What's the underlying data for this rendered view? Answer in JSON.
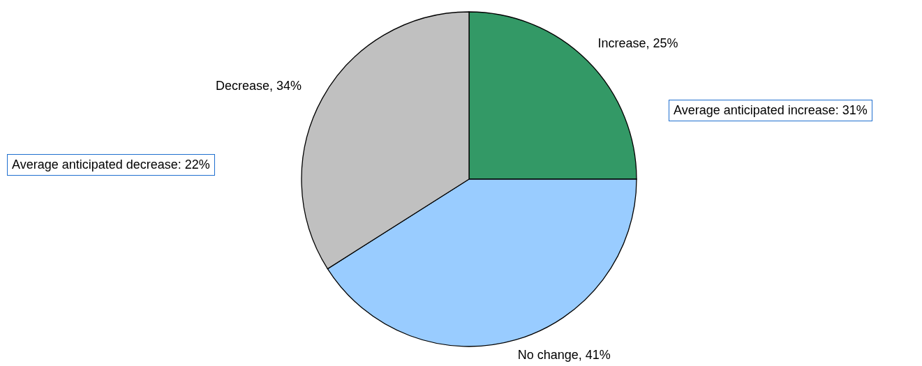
{
  "chart_data": {
    "type": "pie",
    "categories": [
      "Increase",
      "No change",
      "Decrease"
    ],
    "values": [
      25,
      41,
      34
    ],
    "colors": [
      "#339966",
      "#99ccff",
      "#c0c0c0"
    ],
    "value_labels": [
      "25%",
      "41%",
      "34%"
    ],
    "annotations": [
      "Average anticipated increase: 31%",
      "Average anticipated decrease: 22%"
    ]
  }
}
